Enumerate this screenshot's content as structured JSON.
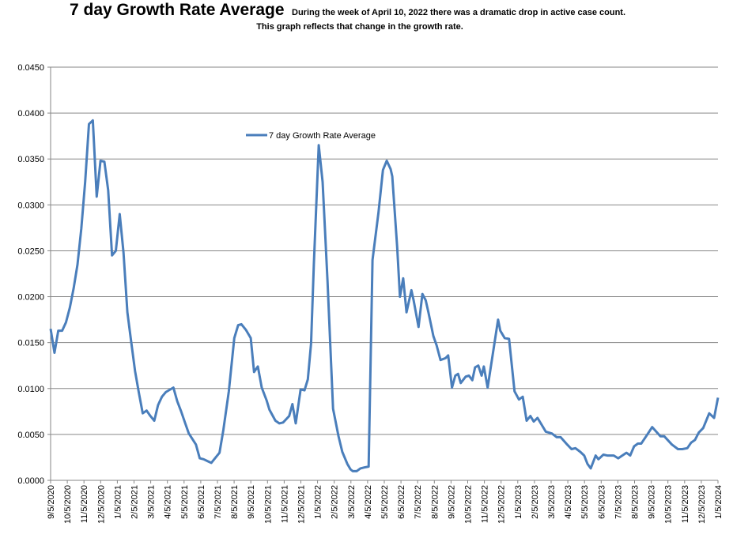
{
  "chart_data": {
    "type": "line",
    "title": "7 day Growth Rate Average",
    "annotation": [
      "During the week of April 10, 2022 there was a dramatic drop in active case count.",
      "This graph reflects that change in the growth rate."
    ],
    "xlabel": "",
    "ylabel": "",
    "ylim": [
      0,
      0.045
    ],
    "xlim": [
      "2020-09-05",
      "2024-01-05"
    ],
    "grid": true,
    "legend_position": "top-center",
    "y_ticks": [
      "0.0000",
      "0.0050",
      "0.0100",
      "0.0150",
      "0.0200",
      "0.0250",
      "0.0300",
      "0.0350",
      "0.0400",
      "0.0450"
    ],
    "x_ticks": [
      "9/5/2020",
      "10/5/2020",
      "11/5/2020",
      "12/5/2020",
      "1/5/2021",
      "2/5/2021",
      "3/5/2021",
      "4/5/2021",
      "5/5/2021",
      "6/5/2021",
      "7/5/2021",
      "8/5/2021",
      "9/5/2021",
      "10/5/2021",
      "11/5/2021",
      "12/5/2021",
      "1/5/2022",
      "2/5/2022",
      "3/5/2022",
      "4/5/2022",
      "5/5/2022",
      "6/5/2022",
      "7/5/2022",
      "8/5/2022",
      "9/5/2022",
      "10/5/2022",
      "11/5/2022",
      "12/5/2022",
      "1/5/2023",
      "2/5/2023",
      "3/5/2023",
      "4/5/2023",
      "5/5/2023",
      "6/5/2023",
      "7/5/2023",
      "8/5/2023",
      "9/5/2023",
      "10/5/2023",
      "11/5/2023",
      "12/5/2023",
      "1/5/2024"
    ],
    "series": [
      {
        "name": "7 day Growth Rate Average",
        "color": "#4a7ebb",
        "points": [
          [
            "2020-09-05",
            0.0165
          ],
          [
            "2020-09-12",
            0.0139
          ],
          [
            "2020-09-19",
            0.0163
          ],
          [
            "2020-09-26",
            0.0163
          ],
          [
            "2020-10-03",
            0.0172
          ],
          [
            "2020-10-10",
            0.0188
          ],
          [
            "2020-10-17",
            0.0209
          ],
          [
            "2020-10-24",
            0.0235
          ],
          [
            "2020-10-31",
            0.0274
          ],
          [
            "2020-11-07",
            0.0325
          ],
          [
            "2020-11-14",
            0.0388
          ],
          [
            "2020-11-21",
            0.0392
          ],
          [
            "2020-11-28",
            0.0309
          ],
          [
            "2020-12-05",
            0.0348
          ],
          [
            "2020-12-12",
            0.0347
          ],
          [
            "2020-12-19",
            0.0316
          ],
          [
            "2020-12-26",
            0.0245
          ],
          [
            "2021-01-02",
            0.025
          ],
          [
            "2021-01-09",
            0.029
          ],
          [
            "2021-01-16",
            0.0248
          ],
          [
            "2021-01-23",
            0.0183
          ],
          [
            "2021-01-30",
            0.0151
          ],
          [
            "2021-02-06",
            0.0119
          ],
          [
            "2021-02-13",
            0.0095
          ],
          [
            "2021-02-20",
            0.0073
          ],
          [
            "2021-02-27",
            0.0076
          ],
          [
            "2021-03-06",
            0.007
          ],
          [
            "2021-03-13",
            0.0065
          ],
          [
            "2021-03-20",
            0.0082
          ],
          [
            "2021-03-27",
            0.0091
          ],
          [
            "2021-04-03",
            0.0096
          ],
          [
            "2021-04-17",
            0.0101
          ],
          [
            "2021-04-24",
            0.0086
          ],
          [
            "2021-05-01",
            0.0075
          ],
          [
            "2021-05-08",
            0.0063
          ],
          [
            "2021-05-15",
            0.0051
          ],
          [
            "2021-05-28",
            0.0039
          ],
          [
            "2021-06-04",
            0.0024
          ],
          [
            "2021-06-11",
            0.0023
          ],
          [
            "2021-06-18",
            0.0021
          ],
          [
            "2021-06-25",
            0.0019
          ],
          [
            "2021-07-10",
            0.003
          ],
          [
            "2021-07-17",
            0.0055
          ],
          [
            "2021-07-27",
            0.0097
          ],
          [
            "2021-08-06",
            0.0155
          ],
          [
            "2021-08-13",
            0.0169
          ],
          [
            "2021-08-19",
            0.017
          ],
          [
            "2021-08-27",
            0.0164
          ],
          [
            "2021-09-05",
            0.0155
          ],
          [
            "2021-09-11",
            0.0118
          ],
          [
            "2021-09-18",
            0.0124
          ],
          [
            "2021-09-25",
            0.0101
          ],
          [
            "2021-10-04",
            0.0087
          ],
          [
            "2021-10-09",
            0.0077
          ],
          [
            "2021-10-20",
            0.0065
          ],
          [
            "2021-10-27",
            0.0062
          ],
          [
            "2021-11-03",
            0.0063
          ],
          [
            "2021-11-14",
            0.007
          ],
          [
            "2021-11-20",
            0.0083
          ],
          [
            "2021-11-26",
            0.0062
          ],
          [
            "2021-12-05",
            0.0099
          ],
          [
            "2021-12-12",
            0.0098
          ],
          [
            "2021-12-18",
            0.011
          ],
          [
            "2021-12-24",
            0.0149
          ],
          [
            "2021-12-29",
            0.0235
          ],
          [
            "2022-01-07",
            0.0365
          ],
          [
            "2022-01-14",
            0.0325
          ],
          [
            "2022-01-23",
            0.0217
          ],
          [
            "2022-02-02",
            0.0078
          ],
          [
            "2022-02-12",
            0.0048
          ],
          [
            "2022-02-19",
            0.0031
          ],
          [
            "2022-02-28",
            0.0018
          ],
          [
            "2022-03-06",
            0.0012
          ],
          [
            "2022-03-10",
            0.001
          ],
          [
            "2022-03-17",
            0.001
          ],
          [
            "2022-03-24",
            0.0013
          ],
          [
            "2022-03-31",
            0.0014
          ],
          [
            "2022-04-08",
            0.0015
          ],
          [
            "2022-04-15",
            0.024
          ],
          [
            "2022-04-26",
            0.0292
          ],
          [
            "2022-05-04",
            0.0338
          ],
          [
            "2022-05-11",
            0.0348
          ],
          [
            "2022-05-18",
            0.0339
          ],
          [
            "2022-05-21",
            0.0331
          ],
          [
            "2022-05-30",
            0.0254
          ],
          [
            "2022-06-04",
            0.02
          ],
          [
            "2022-06-10",
            0.022
          ],
          [
            "2022-06-16",
            0.0183
          ],
          [
            "2022-06-25",
            0.0207
          ],
          [
            "2022-06-29",
            0.0196
          ],
          [
            "2022-07-08",
            0.0167
          ],
          [
            "2022-07-15",
            0.0203
          ],
          [
            "2022-07-21",
            0.0196
          ],
          [
            "2022-07-26",
            0.0183
          ],
          [
            "2022-08-04",
            0.0157
          ],
          [
            "2022-08-10",
            0.0147
          ],
          [
            "2022-08-17",
            0.0131
          ],
          [
            "2022-08-26",
            0.0133
          ],
          [
            "2022-08-31",
            0.0136
          ],
          [
            "2022-09-07",
            0.0101
          ],
          [
            "2022-09-13",
            0.0114
          ],
          [
            "2022-09-18",
            0.0116
          ],
          [
            "2022-09-23",
            0.0106
          ],
          [
            "2022-10-02",
            0.0113
          ],
          [
            "2022-10-08",
            0.0114
          ],
          [
            "2022-10-14",
            0.0109
          ],
          [
            "2022-10-19",
            0.0123
          ],
          [
            "2022-10-25",
            0.0125
          ],
          [
            "2022-10-31",
            0.0114
          ],
          [
            "2022-11-04",
            0.0124
          ],
          [
            "2022-11-11",
            0.0101
          ],
          [
            "2022-11-30",
            0.0175
          ],
          [
            "2022-12-04",
            0.0163
          ],
          [
            "2022-12-12",
            0.0155
          ],
          [
            "2022-12-20",
            0.0154
          ],
          [
            "2022-12-30",
            0.0097
          ],
          [
            "2023-01-07",
            0.0088
          ],
          [
            "2023-01-14",
            0.0091
          ],
          [
            "2023-01-21",
            0.0065
          ],
          [
            "2023-01-28",
            0.007
          ],
          [
            "2023-02-03",
            0.0064
          ],
          [
            "2023-02-10",
            0.0068
          ],
          [
            "2023-02-17",
            0.0061
          ],
          [
            "2023-02-25",
            0.0053
          ],
          [
            "2023-03-08",
            0.0051
          ],
          [
            "2023-03-17",
            0.0047
          ],
          [
            "2023-03-24",
            0.0047
          ],
          [
            "2023-04-05",
            0.0039
          ],
          [
            "2023-04-13",
            0.0034
          ],
          [
            "2023-04-20",
            0.0035
          ],
          [
            "2023-04-29",
            0.0031
          ],
          [
            "2023-05-06",
            0.0027
          ],
          [
            "2023-05-12",
            0.0018
          ],
          [
            "2023-05-18",
            0.0013
          ],
          [
            "2023-05-27",
            0.0027
          ],
          [
            "2023-06-01",
            0.0023
          ],
          [
            "2023-06-10",
            0.0028
          ],
          [
            "2023-06-17",
            0.0027
          ],
          [
            "2023-06-29",
            0.0027
          ],
          [
            "2023-07-07",
            0.0024
          ],
          [
            "2023-07-22",
            0.003
          ],
          [
            "2023-07-29",
            0.0027
          ],
          [
            "2023-08-05",
            0.0037
          ],
          [
            "2023-08-12",
            0.004
          ],
          [
            "2023-08-18",
            0.004
          ],
          [
            "2023-08-27",
            0.0048
          ],
          [
            "2023-09-07",
            0.0058
          ],
          [
            "2023-09-22",
            0.0048
          ],
          [
            "2023-09-29",
            0.0048
          ],
          [
            "2023-10-13",
            0.0039
          ],
          [
            "2023-10-24",
            0.0034
          ],
          [
            "2023-11-01",
            0.0034
          ],
          [
            "2023-11-10",
            0.0035
          ],
          [
            "2023-11-17",
            0.0041
          ],
          [
            "2023-11-24",
            0.0044
          ],
          [
            "2023-12-01",
            0.0052
          ],
          [
            "2023-12-09",
            0.0057
          ],
          [
            "2023-12-20",
            0.0073
          ],
          [
            "2023-12-29",
            0.0068
          ],
          [
            "2024-01-05",
            0.009
          ]
        ]
      }
    ]
  }
}
